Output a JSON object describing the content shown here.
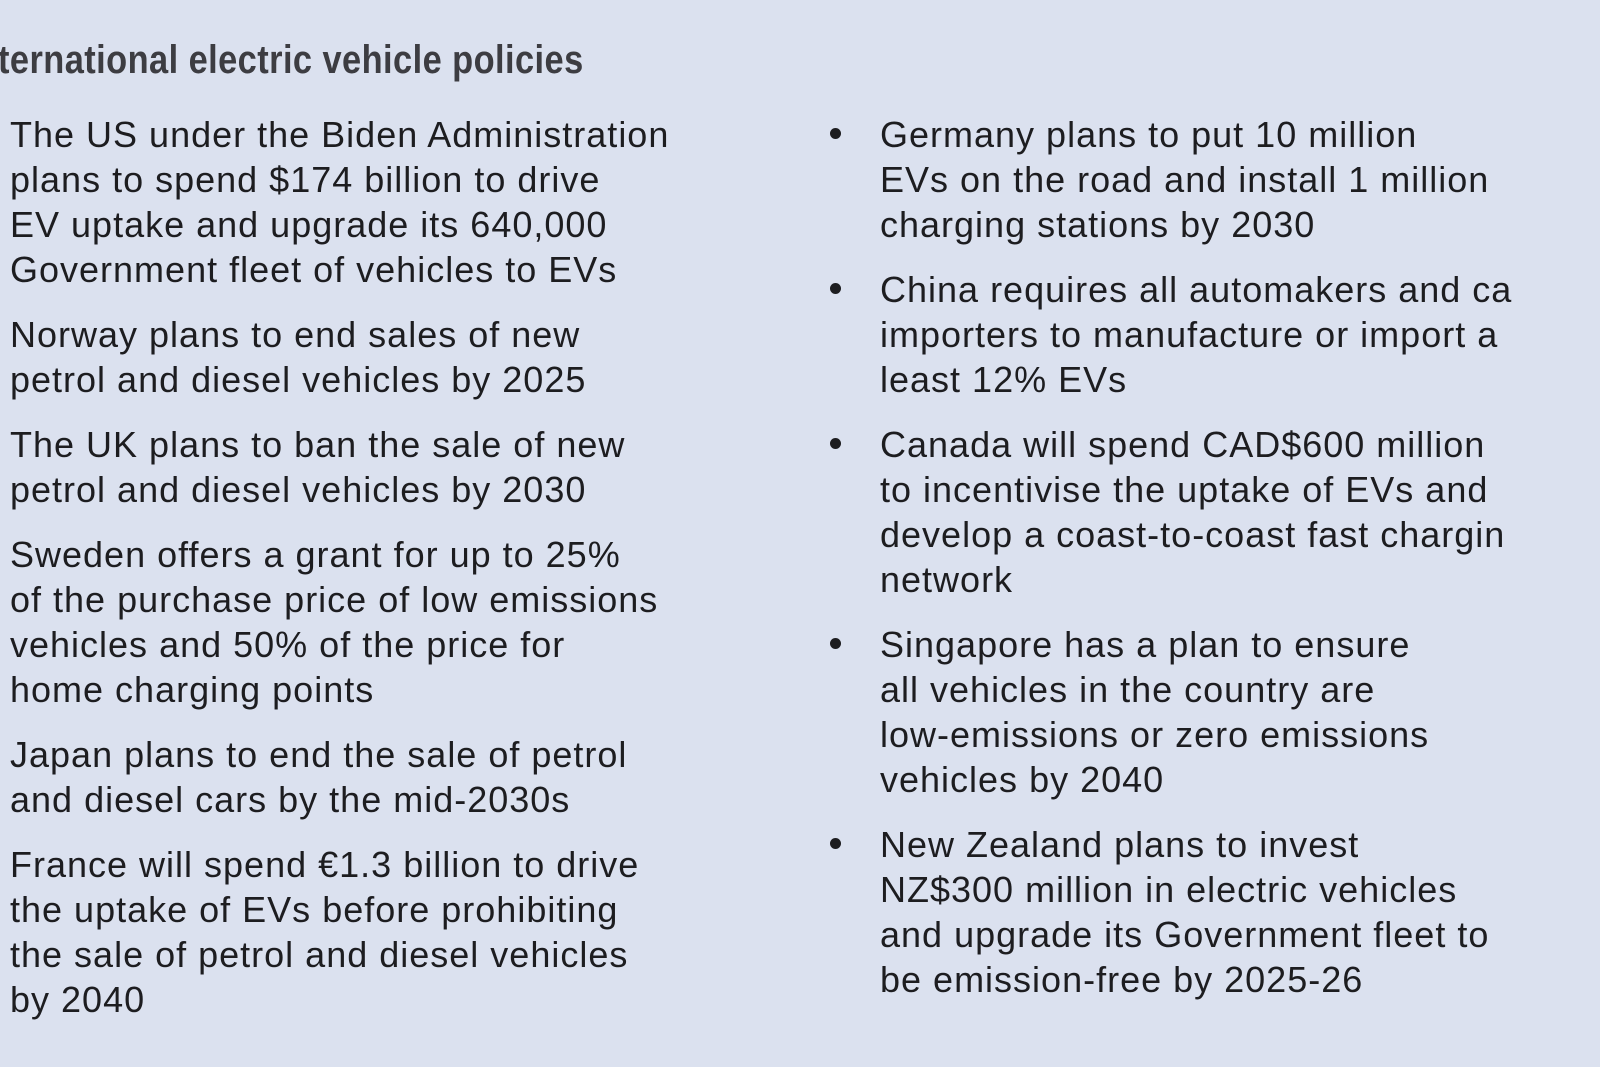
{
  "page": {
    "background_color": "#dbe1ef",
    "text_color": "#1d1d20",
    "title_color": "#3d3d42",
    "title": "ternational electric vehicle policies"
  },
  "left_column": {
    "bullets": [
      {
        "lines": [
          "The US under the Biden Administration",
          "plans to spend $174 billion to drive",
          "EV uptake and upgrade its 640,000",
          "Government fleet of vehicles to EVs"
        ]
      },
      {
        "lines": [
          "Norway plans to end sales of new",
          "petrol and diesel vehicles by 2025"
        ]
      },
      {
        "lines": [
          "The UK plans to ban the sale of new",
          "petrol and diesel vehicles by 2030"
        ]
      },
      {
        "lines": [
          "Sweden offers a grant for up to 25%",
          "of the purchase price of low emissions",
          "vehicles and 50% of the price for",
          "home charging points"
        ]
      },
      {
        "lines": [
          "Japan plans to end the sale of petrol",
          "and diesel cars by the mid-2030s"
        ]
      },
      {
        "lines": [
          "France will spend €1.3 billion to drive",
          "the uptake of EVs before prohibiting",
          "the sale of petrol and diesel vehicles",
          "by 2040"
        ]
      }
    ]
  },
  "right_column": {
    "bullets": [
      {
        "lines": [
          "Germany plans to put 10 million",
          "EVs on the road and install 1 million",
          "charging stations by 2030"
        ]
      },
      {
        "lines": [
          "China requires all automakers and ca",
          "importers to manufacture or import a",
          "least 12% EVs"
        ]
      },
      {
        "lines": [
          "Canada will spend CAD$600 million",
          "to incentivise the uptake of EVs and",
          "develop a coast-to-coast fast chargin",
          "network"
        ]
      },
      {
        "lines": [
          "Singapore has a plan to ensure",
          "all vehicles in the country are",
          "low-emissions or zero emissions",
          "vehicles by 2040"
        ]
      },
      {
        "lines": [
          "New Zealand plans to invest",
          "NZ$300 million in electric vehicles",
          "and upgrade its Government fleet to",
          "be emission-free by 2025-26"
        ]
      }
    ]
  }
}
